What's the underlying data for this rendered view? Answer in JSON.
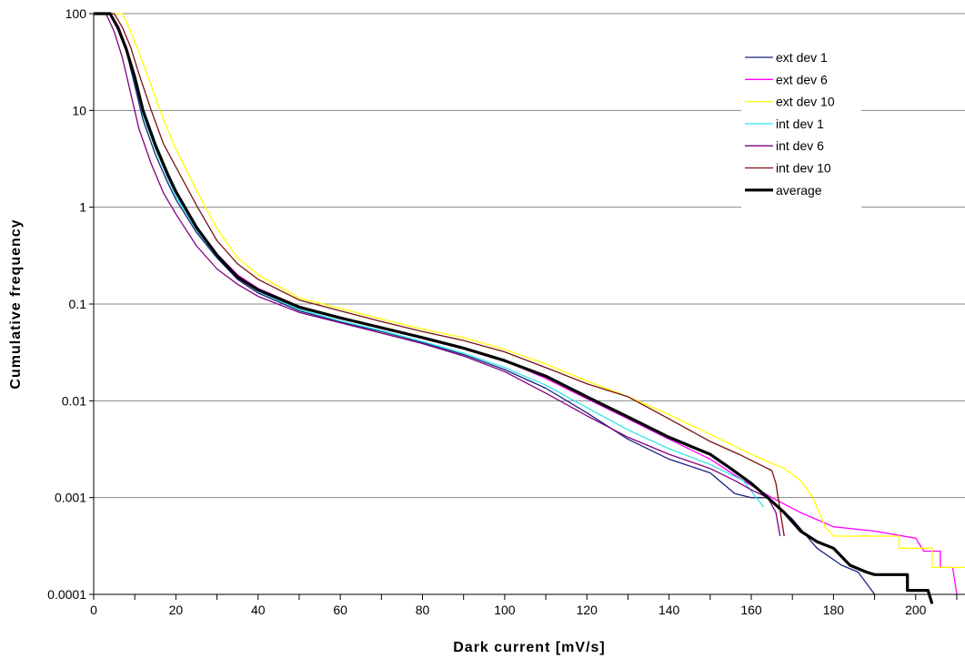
{
  "chart_data": {
    "type": "line",
    "title": "",
    "xlabel": "Dark current [mV/s]",
    "ylabel": "Cumulative frequency",
    "x_ticks": [
      "0",
      "20",
      "40",
      "60",
      "80",
      "100",
      "120",
      "140",
      "160",
      "180",
      "200"
    ],
    "y_ticks": [
      "100",
      "10",
      "1",
      "0.1",
      "0.01",
      "0.001",
      "0.0001"
    ],
    "xlim": [
      0,
      212
    ],
    "ylim": [
      0.0001,
      100
    ],
    "y_scale": "log",
    "grid": "horizontal major gridlines",
    "legend_position": "top-right",
    "series": [
      {
        "name": "ext  dev 1",
        "color": "#1a237e",
        "width": 1.3,
        "points": [
          [
            0,
            100
          ],
          [
            4,
            100
          ],
          [
            6,
            70
          ],
          [
            8,
            40
          ],
          [
            10,
            18
          ],
          [
            12,
            8
          ],
          [
            15,
            3.5
          ],
          [
            18,
            1.8
          ],
          [
            20,
            1.2
          ],
          [
            25,
            0.55
          ],
          [
            30,
            0.3
          ],
          [
            35,
            0.18
          ],
          [
            40,
            0.13
          ],
          [
            50,
            0.085
          ],
          [
            60,
            0.065
          ],
          [
            70,
            0.052
          ],
          [
            80,
            0.04
          ],
          [
            90,
            0.03
          ],
          [
            100,
            0.021
          ],
          [
            110,
            0.0135
          ],
          [
            120,
            0.0075
          ],
          [
            130,
            0.004
          ],
          [
            140,
            0.0025
          ],
          [
            150,
            0.0018
          ],
          [
            156,
            0.0011
          ],
          [
            160,
            0.001
          ],
          [
            164,
            0.001
          ],
          [
            170,
            0.0006
          ],
          [
            176,
            0.0003
          ],
          [
            182,
            0.0002
          ],
          [
            186,
            0.00017
          ],
          [
            190,
            0.0001
          ]
        ]
      },
      {
        "name": "ext  dev 6",
        "color": "#ff00ff",
        "width": 1.3,
        "points": [
          [
            0,
            100
          ],
          [
            4,
            100
          ],
          [
            6,
            75
          ],
          [
            8,
            45
          ],
          [
            10,
            22
          ],
          [
            12,
            10
          ],
          [
            15,
            4.5
          ],
          [
            18,
            2.2
          ],
          [
            20,
            1.4
          ],
          [
            25,
            0.62
          ],
          [
            30,
            0.33
          ],
          [
            35,
            0.2
          ],
          [
            40,
            0.145
          ],
          [
            50,
            0.095
          ],
          [
            60,
            0.072
          ],
          [
            70,
            0.056
          ],
          [
            80,
            0.045
          ],
          [
            90,
            0.035
          ],
          [
            100,
            0.026
          ],
          [
            110,
            0.017
          ],
          [
            120,
            0.0105
          ],
          [
            130,
            0.0065
          ],
          [
            140,
            0.004
          ],
          [
            150,
            0.0025
          ],
          [
            158,
            0.0015
          ],
          [
            165,
            0.001
          ],
          [
            172,
            0.0007
          ],
          [
            180,
            0.0005
          ],
          [
            190,
            0.00045
          ],
          [
            200,
            0.00038
          ],
          [
            202,
            0.00028
          ],
          [
            206,
            0.00028
          ],
          [
            206,
            0.00019
          ],
          [
            209,
            0.00019
          ],
          [
            210,
            0.0001
          ]
        ]
      },
      {
        "name": "ext  dev 10",
        "color": "#ffff00",
        "width": 1.3,
        "points": [
          [
            0,
            100
          ],
          [
            7,
            100
          ],
          [
            9,
            65
          ],
          [
            11,
            40
          ],
          [
            14,
            18
          ],
          [
            17,
            8
          ],
          [
            20,
            4
          ],
          [
            25,
            1.5
          ],
          [
            30,
            0.6
          ],
          [
            35,
            0.3
          ],
          [
            40,
            0.2
          ],
          [
            50,
            0.115
          ],
          [
            60,
            0.09
          ],
          [
            70,
            0.07
          ],
          [
            80,
            0.055
          ],
          [
            90,
            0.045
          ],
          [
            100,
            0.034
          ],
          [
            110,
            0.024
          ],
          [
            120,
            0.016
          ],
          [
            130,
            0.011
          ],
          [
            140,
            0.0072
          ],
          [
            150,
            0.0045
          ],
          [
            160,
            0.0028
          ],
          [
            168,
            0.002
          ],
          [
            172,
            0.0015
          ],
          [
            175,
            0.001
          ],
          [
            178,
            0.0005
          ],
          [
            180,
            0.0004
          ],
          [
            196,
            0.0004
          ],
          [
            196,
            0.0003
          ],
          [
            204,
            0.0003
          ],
          [
            204,
            0.00019
          ],
          [
            212,
            0.00019
          ]
        ]
      },
      {
        "name": "int  dev 1",
        "color": "#33e6e6",
        "width": 1.3,
        "points": [
          [
            0,
            100
          ],
          [
            4,
            100
          ],
          [
            6,
            72
          ],
          [
            8,
            42
          ],
          [
            10,
            20
          ],
          [
            12,
            9
          ],
          [
            15,
            4
          ],
          [
            18,
            2
          ],
          [
            20,
            1.3
          ],
          [
            25,
            0.58
          ],
          [
            30,
            0.31
          ],
          [
            35,
            0.19
          ],
          [
            40,
            0.135
          ],
          [
            50,
            0.088
          ],
          [
            60,
            0.067
          ],
          [
            70,
            0.053
          ],
          [
            80,
            0.041
          ],
          [
            90,
            0.031
          ],
          [
            100,
            0.022
          ],
          [
            110,
            0.0145
          ],
          [
            120,
            0.0085
          ],
          [
            130,
            0.005
          ],
          [
            140,
            0.0032
          ],
          [
            150,
            0.0022
          ],
          [
            158,
            0.0015
          ],
          [
            163,
            0.0008
          ]
        ]
      },
      {
        "name": "int  dev 6",
        "color": "#800080",
        "width": 1.3,
        "points": [
          [
            0,
            100
          ],
          [
            3,
            100
          ],
          [
            5,
            65
          ],
          [
            7,
            35
          ],
          [
            9,
            15
          ],
          [
            11,
            6.5
          ],
          [
            14,
            2.8
          ],
          [
            17,
            1.4
          ],
          [
            20,
            0.85
          ],
          [
            25,
            0.4
          ],
          [
            30,
            0.23
          ],
          [
            35,
            0.16
          ],
          [
            40,
            0.12
          ],
          [
            50,
            0.082
          ],
          [
            60,
            0.064
          ],
          [
            70,
            0.05
          ],
          [
            80,
            0.039
          ],
          [
            90,
            0.029
          ],
          [
            100,
            0.02
          ],
          [
            110,
            0.012
          ],
          [
            120,
            0.007
          ],
          [
            130,
            0.0042
          ],
          [
            140,
            0.0028
          ],
          [
            150,
            0.002
          ],
          [
            156,
            0.0015
          ],
          [
            160,
            0.0012
          ],
          [
            164,
            0.001
          ],
          [
            166,
            0.0007
          ],
          [
            167,
            0.0004
          ]
        ]
      },
      {
        "name": "int  dev 10",
        "color": "#7a1010",
        "width": 1.3,
        "points": [
          [
            0,
            100
          ],
          [
            5,
            100
          ],
          [
            7,
            72
          ],
          [
            9,
            45
          ],
          [
            11,
            24
          ],
          [
            14,
            10
          ],
          [
            17,
            4.5
          ],
          [
            20,
            2.6
          ],
          [
            25,
            1.05
          ],
          [
            30,
            0.45
          ],
          [
            35,
            0.26
          ],
          [
            40,
            0.18
          ],
          [
            50,
            0.11
          ],
          [
            60,
            0.085
          ],
          [
            70,
            0.066
          ],
          [
            80,
            0.052
          ],
          [
            90,
            0.042
          ],
          [
            100,
            0.032
          ],
          [
            110,
            0.022
          ],
          [
            120,
            0.015
          ],
          [
            130,
            0.011
          ],
          [
            140,
            0.0065
          ],
          [
            150,
            0.0038
          ],
          [
            157,
            0.0028
          ],
          [
            162,
            0.0022
          ],
          [
            165,
            0.0019
          ],
          [
            166,
            0.0014
          ],
          [
            168,
            0.0004
          ]
        ]
      },
      {
        "name": "average",
        "color": "#000000",
        "width": 3.2,
        "points": [
          [
            0,
            100
          ],
          [
            4,
            100
          ],
          [
            6,
            70
          ],
          [
            8,
            42
          ],
          [
            10,
            22
          ],
          [
            12,
            10
          ],
          [
            15,
            4.4
          ],
          [
            18,
            2.2
          ],
          [
            20,
            1.45
          ],
          [
            25,
            0.62
          ],
          [
            30,
            0.32
          ],
          [
            35,
            0.19
          ],
          [
            40,
            0.14
          ],
          [
            50,
            0.093
          ],
          [
            60,
            0.072
          ],
          [
            70,
            0.057
          ],
          [
            80,
            0.045
          ],
          [
            90,
            0.035
          ],
          [
            100,
            0.026
          ],
          [
            110,
            0.018
          ],
          [
            120,
            0.011
          ],
          [
            130,
            0.0068
          ],
          [
            140,
            0.0042
          ],
          [
            150,
            0.0028
          ],
          [
            155,
            0.002
          ],
          [
            160,
            0.0014
          ],
          [
            164,
            0.001
          ],
          [
            168,
            0.0007
          ],
          [
            172,
            0.00045
          ],
          [
            176,
            0.00035
          ],
          [
            180,
            0.0003
          ],
          [
            184,
            0.0002
          ],
          [
            188,
            0.00017
          ],
          [
            190,
            0.00016
          ],
          [
            198,
            0.00016
          ],
          [
            198,
            0.00011
          ],
          [
            203,
            0.00011
          ],
          [
            204,
            8e-05
          ]
        ]
      }
    ]
  }
}
